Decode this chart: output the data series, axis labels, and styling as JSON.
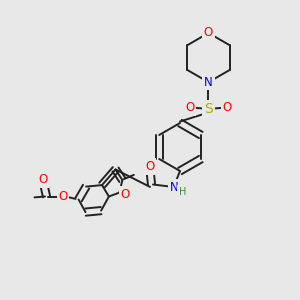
{
  "bg_color": "#e8e8e8",
  "bond_color": "#222222",
  "bond_width": 1.4,
  "dbo": 0.012,
  "atom_colors": {
    "O": "#ff0000",
    "N": "#0000ee",
    "S": "#bbaa00",
    "H": "#3a8a3a",
    "C": "#222222"
  },
  "fs": 8.5,
  "fs_small": 7.0
}
